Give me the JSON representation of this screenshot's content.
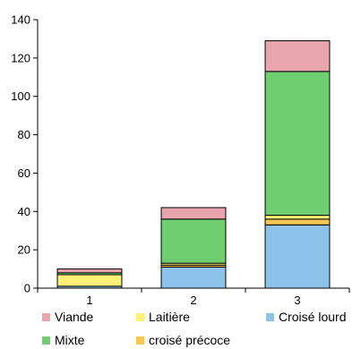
{
  "chart_data": {
    "type": "bar",
    "stacked": true,
    "categories": [
      "1",
      "2",
      "3"
    ],
    "ylim": [
      0,
      140
    ],
    "yticks": [
      0,
      20,
      40,
      60,
      80,
      100,
      120,
      140
    ],
    "grid": false,
    "legend_position": "bottom",
    "title": "",
    "xlabel": "",
    "ylabel": "",
    "series": [
      {
        "name": "Croisé lourd",
        "color": "#8dc3ea",
        "values": [
          1,
          11,
          33
        ]
      },
      {
        "name": "croisé précoce",
        "color": "#f7c653",
        "values": [
          0,
          1,
          3
        ]
      },
      {
        "name": "Laitière",
        "color": "#fff176",
        "values": [
          6,
          1,
          2
        ]
      },
      {
        "name": "Mixte",
        "color": "#6fcf6f",
        "values": [
          1,
          23,
          75
        ]
      },
      {
        "name": "Viande",
        "color": "#e9a5ae",
        "values": [
          2,
          6,
          16
        ]
      }
    ],
    "legend_order": [
      "Viande",
      "Laitière",
      "Croisé lourd",
      "Mixte",
      "croisé précoce"
    ]
  }
}
